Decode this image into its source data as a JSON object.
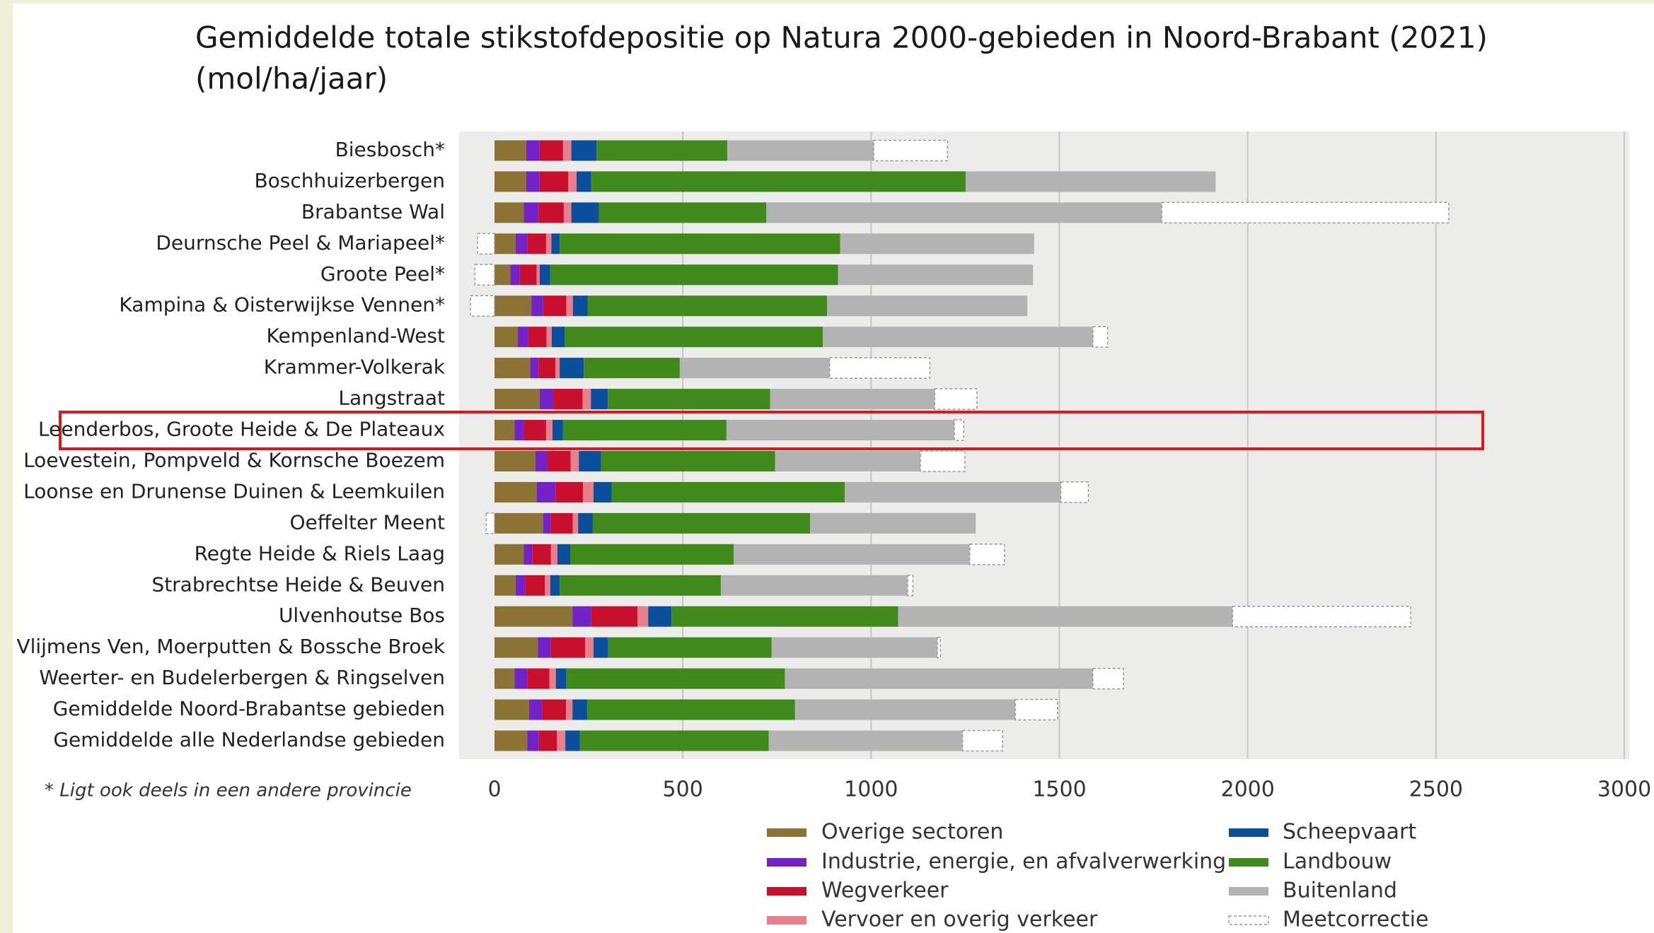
{
  "chart_data": {
    "type": "stacked-barh",
    "title": "Gemiddelde totale stikstofdepositie op Natura 2000-gebieden in Noord-Brabant (2021)",
    "unit": "(mol/ha/jaar)",
    "footnote": "* Ligt ook deels in een andere provincie",
    "categories": [
      "Biesbosch*",
      "Boschhuizerbergen",
      "Brabantse Wal",
      "Deurnsche Peel & Mariapeel*",
      "Groote Peel*",
      "Kampina & Oisterwijkse Vennen*",
      "Kempenland-West",
      "Krammer-Volkerak",
      "Langstraat",
      "Leenderbos, Groote Heide & De Plateaux",
      "Loevestein, Pompveld & Kornsche Boezem",
      "Loonse en Drunense Duinen & Leemkuilen",
      "Oeffelter Meent",
      "Regte Heide & Riels Laag",
      "Strabrechtse Heide & Beuven",
      "Ulvenhoutse Bos",
      "Vlijmens Ven, Moerputten & Bossche Broek",
      "Weerter- en Budelerbergen & Ringselven",
      "Gemiddelde Noord-Brabantse gebieden",
      "Gemiddelde alle Nederlandse gebieden"
    ],
    "series": [
      {
        "name": "Overige sectoren",
        "color": "#8b7336",
        "values": [
          84,
          84,
          78,
          56,
          42,
          98,
          62,
          95,
          120,
          53,
          109,
          112,
          129,
          78,
          56,
          207,
          115,
          53,
          92,
          87
        ]
      },
      {
        "name": "Industrie, energie, en afvalverwerking",
        "color": "#7322c8",
        "values": [
          36,
          36,
          39,
          31,
          25,
          31,
          28,
          22,
          36,
          25,
          31,
          50,
          20,
          22,
          25,
          50,
          34,
          34,
          34,
          31
        ]
      },
      {
        "name": "Wegverkeer",
        "color": "#c8102e",
        "values": [
          62,
          76,
          67,
          50,
          45,
          62,
          48,
          45,
          78,
          59,
          62,
          73,
          59,
          50,
          53,
          123,
          92,
          59,
          64,
          48
        ]
      },
      {
        "name": "Vervoer en overig verkeer",
        "color": "#e8808c",
        "values": [
          22,
          22,
          20,
          14,
          8,
          17,
          14,
          11,
          22,
          17,
          22,
          28,
          14,
          17,
          14,
          28,
          22,
          17,
          17,
          22
        ]
      },
      {
        "name": "Scheepvaart",
        "color": "#0b4f9c",
        "values": [
          67,
          39,
          73,
          22,
          28,
          39,
          34,
          64,
          45,
          28,
          59,
          48,
          39,
          34,
          25,
          62,
          39,
          28,
          39,
          39
        ]
      },
      {
        "name": "Landbouw",
        "color": "#3f8a1a",
        "values": [
          347,
          994,
          445,
          745,
          764,
          636,
          686,
          255,
          431,
          434,
          462,
          619,
          577,
          434,
          428,
          602,
          434,
          580,
          552,
          501
        ]
      },
      {
        "name": "Buitenland",
        "color": "#b3b3b3",
        "values": [
          389,
          664,
          1050,
          515,
          518,
          532,
          717,
          398,
          437,
          605,
          386,
          574,
          440,
          627,
          496,
          888,
          440,
          818,
          585,
          515
        ]
      },
      {
        "name": "Meetcorrectie",
        "color": "#ffffff",
        "values": [
          196,
          0,
          762,
          -45,
          -52,
          -64,
          39,
          266,
          112,
          25,
          118,
          73,
          -22,
          92,
          14,
          473,
          8,
          81,
          112,
          106
        ]
      }
    ],
    "xlim": [
      -100,
      3000
    ],
    "xticks": [
      0,
      500,
      1000,
      1500,
      2000,
      2500,
      3000
    ],
    "grid": true
  }
}
